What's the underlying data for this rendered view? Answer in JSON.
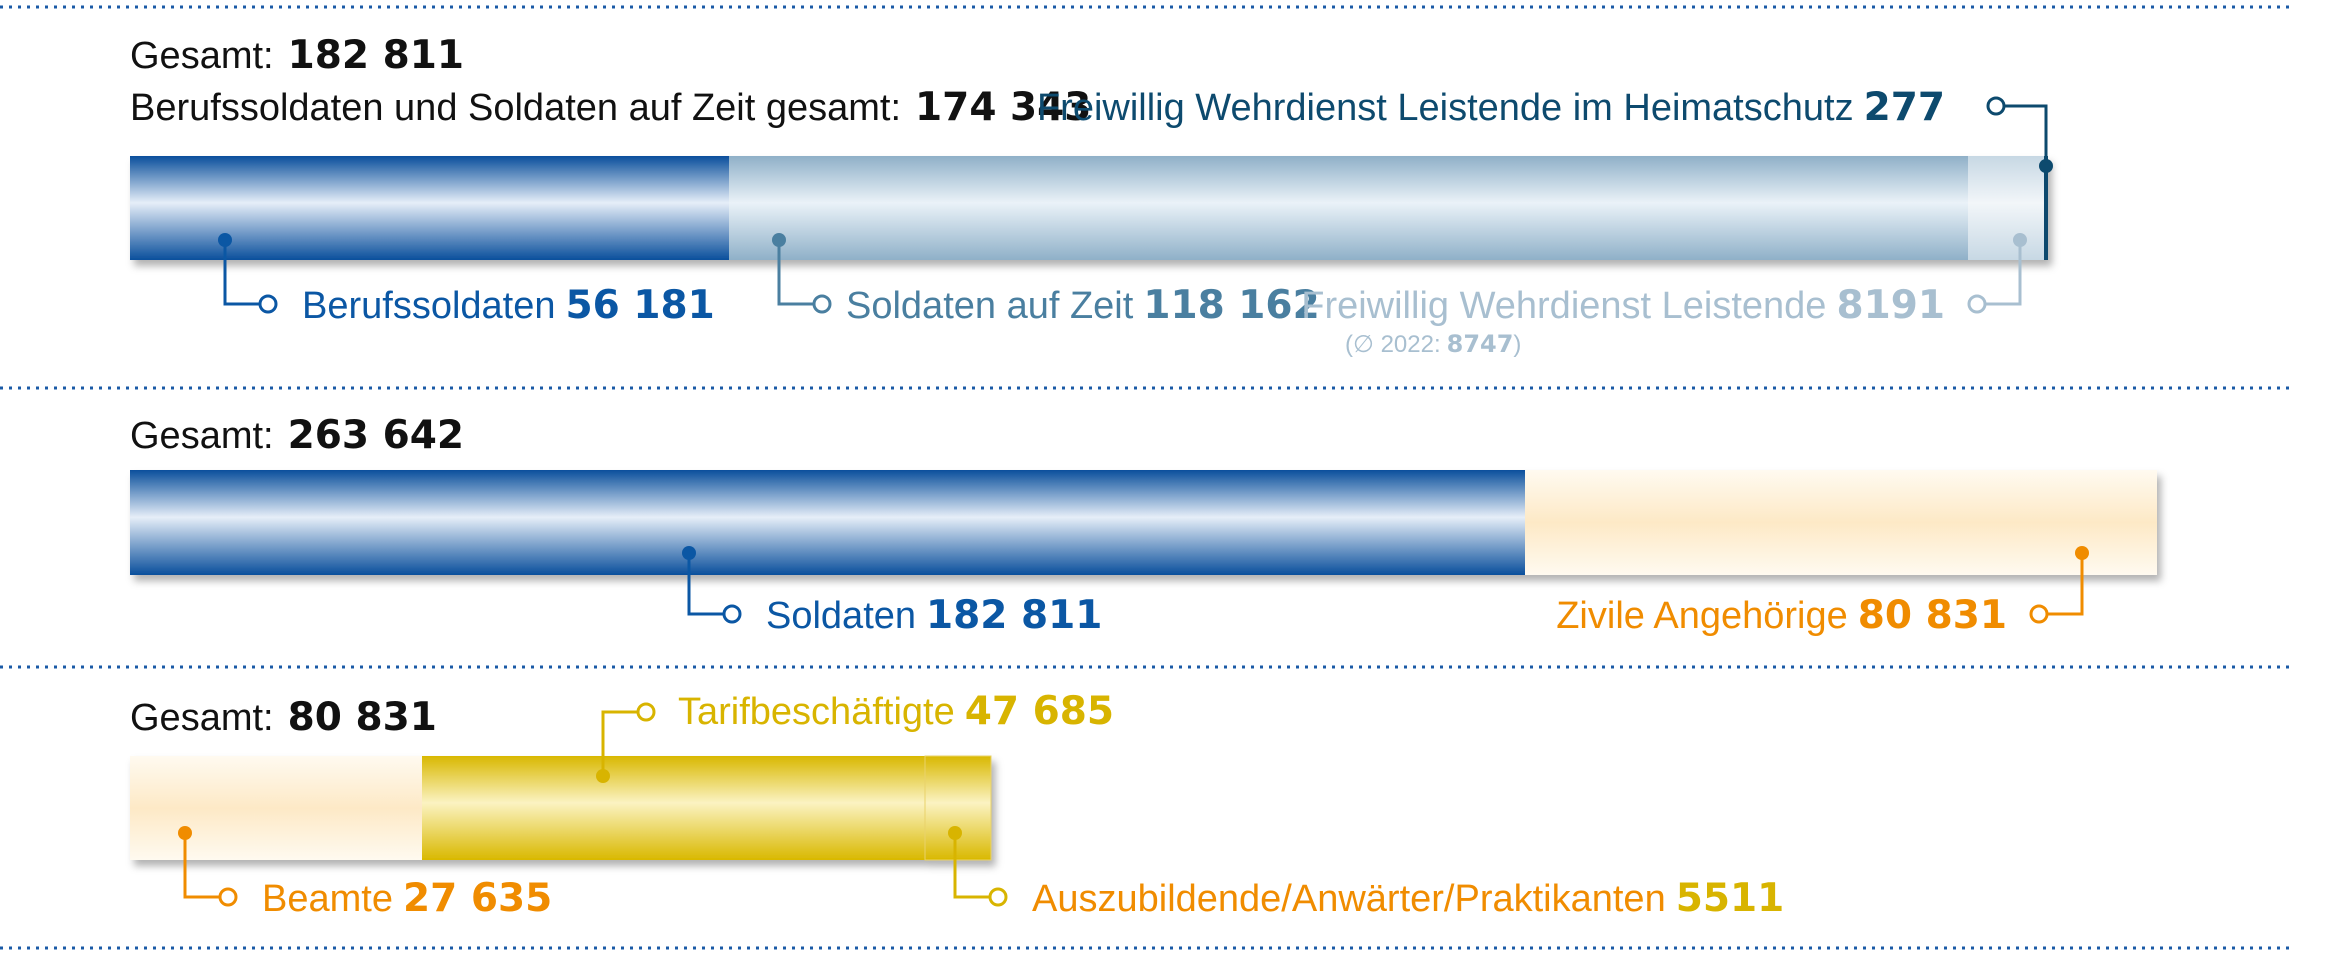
{
  "colors": {
    "dark_blue": "#0b57a4",
    "steel_blue": "#4a7fa0",
    "light_steel": "#a8bfd0",
    "navy": "#0d4a6e",
    "orange": "#f08c00",
    "gold": "#d8b400",
    "black": "#111111",
    "separator": "#1a5aa6"
  },
  "sections": {
    "soldiers": {
      "total_label": "Gesamt:",
      "total_value": "182 811",
      "subtotal_label": "Berufssoldaten und Soldaten auf Zeit gesamt:",
      "subtotal_value": "174 343",
      "heimatschutz_label": "Freiwillig Wehrdienst Leistende im Heimatschutz",
      "heimatschutz_value": "277",
      "berufs_label": "Berufssoldaten",
      "berufs_value": "56 181",
      "zeit_label": "Soldaten auf Zeit",
      "zeit_value": "118 162",
      "fwdl_label": "Freiwillig Wehrdienst Leistende",
      "fwdl_value": "8191",
      "fwdl_avg_prefix": "(∅ 2022:",
      "fwdl_avg_value": "8747",
      "fwdl_avg_suffix": ")"
    },
    "total": {
      "total_label": "Gesamt:",
      "total_value": "263 642",
      "soldaten_label": "Soldaten",
      "soldaten_value": "182 811",
      "zivil_label": "Zivile Angehörige",
      "zivil_value": "80 831"
    },
    "civil": {
      "total_label": "Gesamt:",
      "total_value": "80 831",
      "tarif_label": "Tarifbeschäftigte",
      "tarif_value": "47 685",
      "beamte_label": "Beamte",
      "beamte_value": "27 635",
      "azubi_label": "Auszubildende/Anwärter/Praktikanten",
      "azubi_value": "5511"
    }
  },
  "chart_data": [
    {
      "type": "bar",
      "orientation": "horizontal-stacked",
      "total": 182811,
      "series": [
        {
          "name": "Berufssoldaten",
          "value": 56181
        },
        {
          "name": "Soldaten auf Zeit",
          "value": 118162
        },
        {
          "name": "Freiwillig Wehrdienst Leistende",
          "value": 8191
        },
        {
          "name": "Freiwillig Wehrdienst Leistende im Heimatschutz",
          "value": 277
        }
      ]
    },
    {
      "type": "bar",
      "orientation": "horizontal-stacked",
      "total": 263642,
      "series": [
        {
          "name": "Soldaten",
          "value": 182811
        },
        {
          "name": "Zivile Angehörige",
          "value": 80831
        }
      ]
    },
    {
      "type": "bar",
      "orientation": "horizontal-stacked",
      "total": 80831,
      "series": [
        {
          "name": "Beamte",
          "value": 27635
        },
        {
          "name": "Tarifbeschäftigte",
          "value": 47685
        },
        {
          "name": "Auszubildende/Anwärter/Praktikanten",
          "value": 5511
        }
      ]
    }
  ]
}
